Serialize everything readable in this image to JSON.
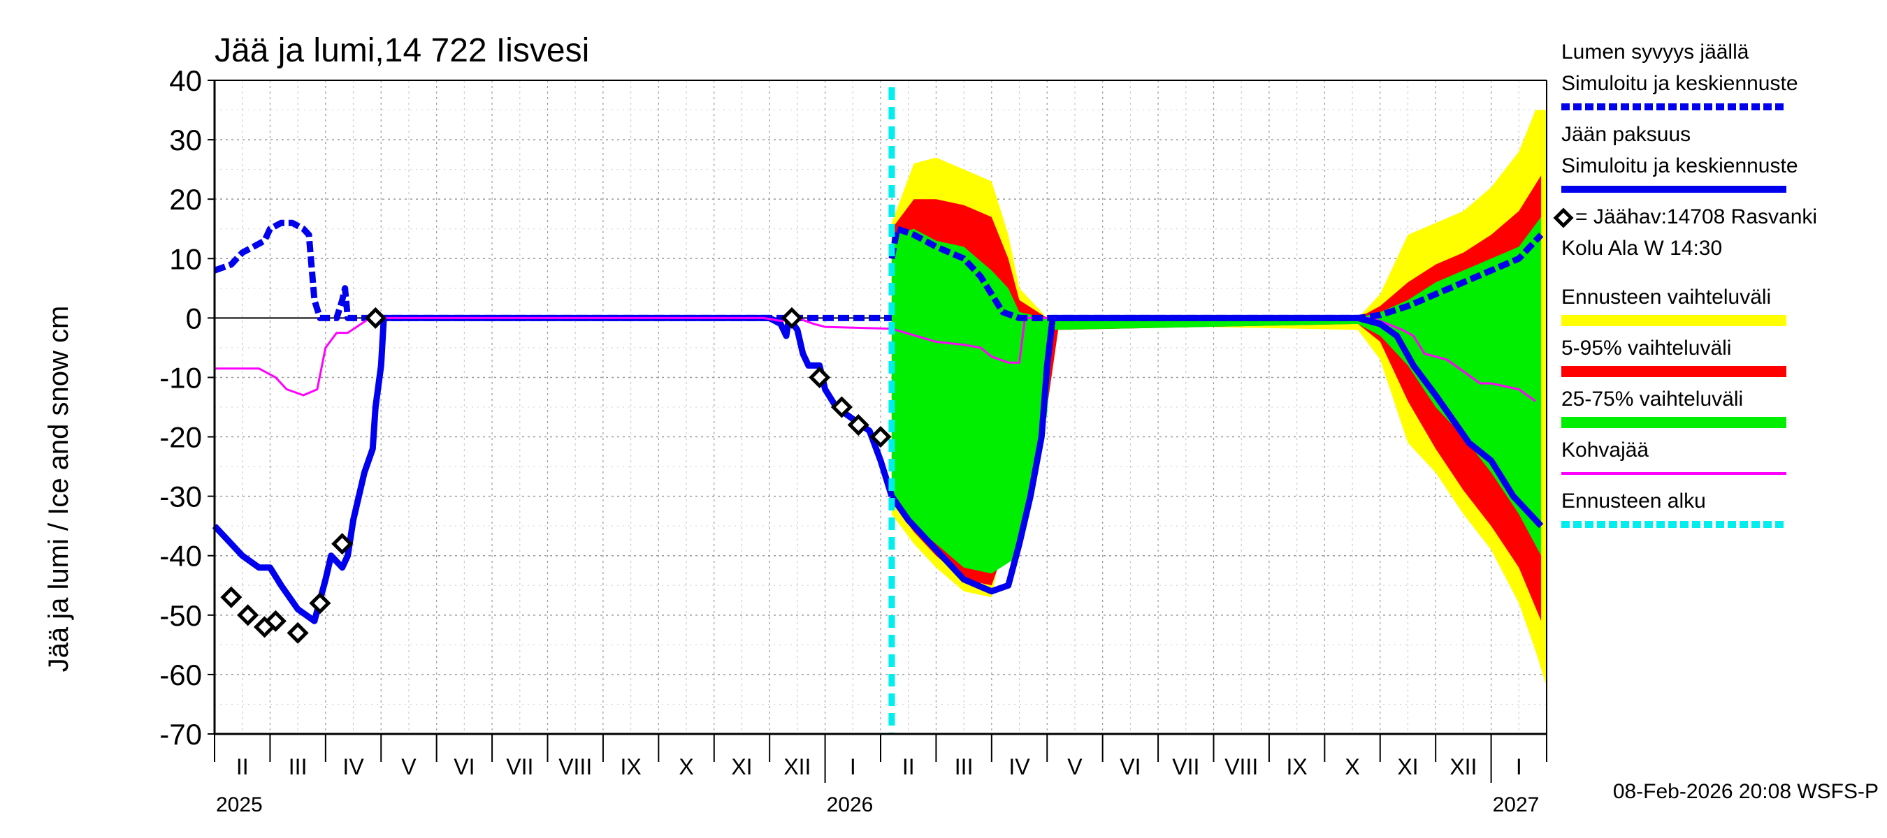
{
  "chart_data": {
    "type": "line",
    "title": "Jää ja lumi,14 722 Iisvesi",
    "ylabel": "Jää ja lumi / Ice and snow    cm",
    "ylim": [
      -70,
      40
    ],
    "yticks": [
      40,
      30,
      20,
      10,
      0,
      -10,
      -20,
      -30,
      -40,
      -50,
      -60,
      -70
    ],
    "grid": true,
    "x_range_months": [
      0,
      24
    ],
    "x_note": "x in months since 2025-02-01",
    "month_labels": [
      "II",
      "III",
      "IV",
      "V",
      "VI",
      "VII",
      "VIII",
      "IX",
      "X",
      "XI",
      "XII",
      "I",
      "II",
      "III",
      "IV",
      "V",
      "VI",
      "VII",
      "VIII",
      "IX",
      "X",
      "XI",
      "XII",
      "I"
    ],
    "year_labels": [
      {
        "text": "2025",
        "month": 0
      },
      {
        "text": "2026",
        "month": 11
      },
      {
        "text": "2027",
        "month": 23
      }
    ],
    "forecast_start": 12.2,
    "legend": [
      {
        "key": "snow",
        "text": [
          "Lumen syvyys jäällä",
          "Simuloitu ja keskiennuste"
        ],
        "style": "dashed",
        "color": "#0000ee"
      },
      {
        "key": "ice",
        "text": [
          "Jään paksuus",
          "Simuloitu ja keskiennuste"
        ],
        "style": "solid",
        "color": "#0000ee"
      },
      {
        "key": "obs",
        "text": [
          "= Jäähav:14708 Rasvanki",
          "Kolu Ala W 14:30"
        ],
        "style": "diamond",
        "color": "#000000"
      },
      {
        "key": "range",
        "text": [
          "Ennusteen vaihteluväli"
        ],
        "style": "band",
        "color": "#ffff00"
      },
      {
        "key": "p595",
        "text": [
          "5-95% vaihteluväli"
        ],
        "style": "band",
        "color": "#ff0000"
      },
      {
        "key": "p2575",
        "text": [
          "25-75% vaihteluväli"
        ],
        "style": "band",
        "color": "#00ee00"
      },
      {
        "key": "slush",
        "text": [
          "Kohvajää"
        ],
        "style": "solid",
        "color": "#ff00ff"
      },
      {
        "key": "fstart",
        "text": [
          "Ennusteen alku"
        ],
        "style": "dashed",
        "color": "#00eeee"
      }
    ],
    "series": [
      {
        "name": "Lumen syvyys jäällä (simuloitu)",
        "color": "#0000ee",
        "dashed": true,
        "points": [
          [
            0,
            8
          ],
          [
            0.3,
            9
          ],
          [
            0.5,
            11
          ],
          [
            0.7,
            12
          ],
          [
            0.9,
            13
          ],
          [
            1.0,
            15
          ],
          [
            1.2,
            16
          ],
          [
            1.4,
            16
          ],
          [
            1.6,
            15
          ],
          [
            1.7,
            14
          ],
          [
            1.8,
            3
          ],
          [
            1.9,
            0
          ],
          [
            2.2,
            0
          ],
          [
            2.3,
            3
          ],
          [
            2.35,
            5
          ],
          [
            2.4,
            0
          ],
          [
            2.8,
            0
          ],
          [
            11,
            0
          ],
          [
            12.2,
            0
          ]
        ]
      },
      {
        "name": "Jään paksuus (simuloitu)",
        "color": "#0000ee",
        "dashed": false,
        "points": [
          [
            0,
            -35
          ],
          [
            0.2,
            -37
          ],
          [
            0.5,
            -40
          ],
          [
            0.8,
            -42
          ],
          [
            1.0,
            -42
          ],
          [
            1.2,
            -45
          ],
          [
            1.5,
            -49
          ],
          [
            1.8,
            -51
          ],
          [
            2.0,
            -44
          ],
          [
            2.1,
            -40
          ],
          [
            2.3,
            -42
          ],
          [
            2.4,
            -40
          ],
          [
            2.5,
            -34
          ],
          [
            2.7,
            -26
          ],
          [
            2.85,
            -22
          ],
          [
            2.9,
            -15
          ],
          [
            3.0,
            -8
          ],
          [
            3.05,
            0
          ],
          [
            10.0,
            0
          ],
          [
            10.2,
            -1
          ],
          [
            10.3,
            -3
          ],
          [
            10.35,
            0
          ],
          [
            10.5,
            -2
          ],
          [
            10.6,
            -6
          ],
          [
            10.7,
            -8
          ],
          [
            10.9,
            -8
          ],
          [
            11.0,
            -12
          ],
          [
            11.2,
            -15
          ],
          [
            11.5,
            -17
          ],
          [
            11.8,
            -19
          ],
          [
            12.0,
            -24
          ],
          [
            12.2,
            -30
          ]
        ]
      },
      {
        "name": "Kohvajää",
        "color": "#ff00ff",
        "dashed": false,
        "points": [
          [
            0,
            -8.5
          ],
          [
            0.8,
            -8.5
          ],
          [
            1.1,
            -10
          ],
          [
            1.3,
            -12
          ],
          [
            1.6,
            -13
          ],
          [
            1.85,
            -12
          ],
          [
            2.0,
            -5
          ],
          [
            2.2,
            -2.5
          ],
          [
            2.4,
            -2.5
          ],
          [
            2.8,
            0
          ],
          [
            9.9,
            0
          ],
          [
            10.2,
            -0.5
          ],
          [
            10.5,
            0
          ],
          [
            10.8,
            -1
          ],
          [
            11.0,
            -1.5
          ],
          [
            12.2,
            -1.8
          ],
          [
            13.0,
            -4
          ],
          [
            13.5,
            -4.5
          ],
          [
            13.8,
            -5
          ],
          [
            14.0,
            -6.5
          ],
          [
            14.3,
            -7.5
          ],
          [
            14.5,
            -7.5
          ],
          [
            14.6,
            0
          ],
          [
            20.8,
            0
          ],
          [
            21.0,
            -0.5
          ],
          [
            21.4,
            -2
          ],
          [
            21.6,
            -3
          ],
          [
            21.8,
            -6
          ],
          [
            22.2,
            -7
          ],
          [
            22.5,
            -9
          ],
          [
            22.8,
            -11
          ],
          [
            23.0,
            -11
          ],
          [
            23.5,
            -12
          ],
          [
            23.8,
            -14
          ]
        ]
      },
      {
        "name": "Lumen keskiennuste",
        "color": "#0000ee",
        "dashed": true,
        "points": [
          [
            12.2,
            10
          ],
          [
            12.3,
            15
          ],
          [
            12.6,
            14
          ],
          [
            13.0,
            12
          ],
          [
            13.5,
            10
          ],
          [
            13.8,
            7
          ],
          [
            14.0,
            4
          ],
          [
            14.2,
            1
          ],
          [
            14.5,
            0
          ],
          [
            20.6,
            0
          ],
          [
            21.0,
            0.5
          ],
          [
            21.5,
            2
          ],
          [
            22.0,
            4
          ],
          [
            22.5,
            6
          ],
          [
            23.0,
            8
          ],
          [
            23.5,
            10
          ],
          [
            23.9,
            14
          ]
        ]
      },
      {
        "name": "Jään keskiennuste",
        "color": "#0000ee",
        "dashed": false,
        "points": [
          [
            12.2,
            -30
          ],
          [
            12.5,
            -34
          ],
          [
            13.0,
            -39
          ],
          [
            13.5,
            -44
          ],
          [
            14.0,
            -46
          ],
          [
            14.3,
            -45
          ],
          [
            14.5,
            -38
          ],
          [
            14.7,
            -30
          ],
          [
            14.9,
            -20
          ],
          [
            15.0,
            -8
          ],
          [
            15.1,
            0
          ],
          [
            20.6,
            0
          ],
          [
            21.0,
            -1
          ],
          [
            21.3,
            -3
          ],
          [
            21.6,
            -8
          ],
          [
            22.0,
            -13
          ],
          [
            22.3,
            -17
          ],
          [
            22.6,
            -21
          ],
          [
            23.0,
            -24
          ],
          [
            23.4,
            -30
          ],
          [
            23.9,
            -35
          ]
        ]
      }
    ],
    "bands": [
      {
        "name": "Ennusteen vaihteluväli",
        "color": "#ffff00",
        "upper": [
          [
            12.2,
            16
          ],
          [
            12.6,
            26
          ],
          [
            13.0,
            27
          ],
          [
            13.5,
            25
          ],
          [
            14.0,
            23
          ],
          [
            14.3,
            14
          ],
          [
            14.5,
            5
          ],
          [
            15.0,
            0
          ],
          [
            20.6,
            0
          ],
          [
            21.0,
            4
          ],
          [
            21.5,
            14
          ],
          [
            22.0,
            16
          ],
          [
            22.5,
            18
          ],
          [
            23.0,
            22
          ],
          [
            23.5,
            28
          ],
          [
            23.8,
            35
          ],
          [
            24,
            35
          ]
        ],
        "lower": [
          [
            12.2,
            -33
          ],
          [
            12.6,
            -38
          ],
          [
            13.0,
            -42
          ],
          [
            13.5,
            -46
          ],
          [
            14.0,
            -47
          ],
          [
            14.5,
            -22
          ],
          [
            15.0,
            -6
          ],
          [
            15.2,
            -1
          ],
          [
            20.6,
            -2
          ],
          [
            21.0,
            -7
          ],
          [
            21.5,
            -21
          ],
          [
            22.0,
            -26
          ],
          [
            22.5,
            -33
          ],
          [
            23.0,
            -39
          ],
          [
            23.5,
            -48
          ],
          [
            23.8,
            -56
          ],
          [
            24,
            -62
          ]
        ]
      },
      {
        "name": "5-95% vaihteluväli",
        "color": "#ff0000",
        "upper": [
          [
            12.2,
            15
          ],
          [
            12.6,
            20
          ],
          [
            13.0,
            20
          ],
          [
            13.5,
            19
          ],
          [
            14.0,
            17
          ],
          [
            14.3,
            10
          ],
          [
            14.5,
            3
          ],
          [
            15.0,
            0
          ],
          [
            20.6,
            0
          ],
          [
            21.0,
            2
          ],
          [
            21.5,
            6
          ],
          [
            22.0,
            9
          ],
          [
            22.5,
            11
          ],
          [
            23.0,
            14
          ],
          [
            23.5,
            18
          ],
          [
            23.9,
            24
          ]
        ],
        "lower": [
          [
            12.2,
            -31
          ],
          [
            12.6,
            -36
          ],
          [
            13.0,
            -40
          ],
          [
            13.5,
            -44
          ],
          [
            14.0,
            -45
          ],
          [
            14.5,
            -32
          ],
          [
            15.0,
            -15
          ],
          [
            15.2,
            -2
          ],
          [
            20.6,
            -1
          ],
          [
            21.0,
            -4
          ],
          [
            21.5,
            -14
          ],
          [
            22.0,
            -22
          ],
          [
            22.5,
            -29
          ],
          [
            23.0,
            -35
          ],
          [
            23.5,
            -42
          ],
          [
            23.9,
            -51
          ]
        ]
      },
      {
        "name": "25-75% vaihteluväli",
        "color": "#00ee00",
        "upper": [
          [
            12.2,
            14
          ],
          [
            12.6,
            15
          ],
          [
            13.0,
            13
          ],
          [
            13.5,
            12
          ],
          [
            14.0,
            8
          ],
          [
            14.3,
            5
          ],
          [
            14.5,
            1
          ],
          [
            15.0,
            0
          ],
          [
            20.6,
            0
          ],
          [
            21.0,
            1
          ],
          [
            21.5,
            3
          ],
          [
            22.0,
            6
          ],
          [
            22.5,
            8
          ],
          [
            23.0,
            10
          ],
          [
            23.5,
            12
          ],
          [
            23.9,
            17
          ]
        ],
        "lower": [
          [
            12.2,
            -30
          ],
          [
            12.6,
            -35
          ],
          [
            13.0,
            -38
          ],
          [
            13.5,
            -42
          ],
          [
            14.0,
            -43
          ],
          [
            14.5,
            -40
          ],
          [
            15.0,
            -16
          ],
          [
            15.1,
            -2
          ],
          [
            20.6,
            -1
          ],
          [
            21.0,
            -3
          ],
          [
            21.5,
            -8
          ],
          [
            22.0,
            -15
          ],
          [
            22.5,
            -20
          ],
          [
            23.0,
            -26
          ],
          [
            23.5,
            -33
          ],
          [
            23.9,
            -40
          ]
        ]
      }
    ],
    "observations": [
      [
        0.3,
        -47
      ],
      [
        0.6,
        -50
      ],
      [
        0.9,
        -52
      ],
      [
        1.1,
        -51
      ],
      [
        1.5,
        -53
      ],
      [
        1.9,
        -48
      ],
      [
        2.3,
        -38
      ],
      [
        2.9,
        0
      ],
      [
        10.4,
        0
      ],
      [
        10.9,
        -10
      ],
      [
        11.3,
        -15
      ],
      [
        11.6,
        -18
      ],
      [
        12.0,
        -20
      ]
    ]
  },
  "timestamp": "08-Feb-2026 20:08 WSFS-P"
}
